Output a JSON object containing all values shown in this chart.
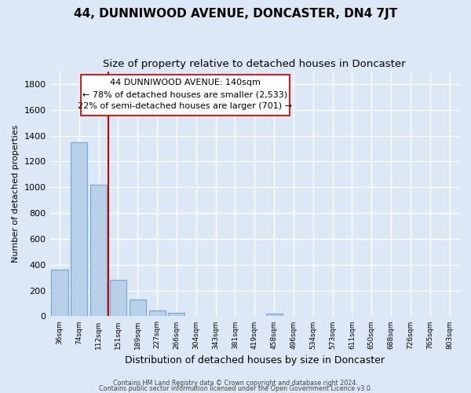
{
  "title": "44, DUNNIWOOD AVENUE, DONCASTER, DN4 7JT",
  "subtitle": "Size of property relative to detached houses in Doncaster",
  "xlabel": "Distribution of detached houses by size in Doncaster",
  "ylabel": "Number of detached properties",
  "bar_labels": [
    "36sqm",
    "74sqm",
    "112sqm",
    "151sqm",
    "189sqm",
    "227sqm",
    "266sqm",
    "304sqm",
    "343sqm",
    "381sqm",
    "419sqm",
    "458sqm",
    "496sqm",
    "534sqm",
    "573sqm",
    "611sqm",
    "650sqm",
    "688sqm",
    "726sqm",
    "765sqm",
    "803sqm"
  ],
  "bar_values": [
    360,
    1350,
    1020,
    285,
    130,
    45,
    30,
    0,
    0,
    0,
    0,
    20,
    0,
    0,
    0,
    0,
    0,
    0,
    0,
    0,
    0
  ],
  "bar_color": "#b8d0e8",
  "bar_edge_color": "#6fa8d0",
  "highlight_line_color": "#cc0000",
  "annotation_text_line1": "44 DUNNIWOOD AVENUE: 140sqm",
  "annotation_text_line2": "← 78% of detached houses are smaller (2,533)",
  "annotation_text_line3": "22% of semi-detached houses are larger (701) →",
  "ylim": [
    0,
    1900
  ],
  "yticks": [
    0,
    200,
    400,
    600,
    800,
    1000,
    1200,
    1400,
    1600,
    1800
  ],
  "footer_line1": "Contains HM Land Registry data © Crown copyright and database right 2024.",
  "footer_line2": "Contains public sector information licensed under the Open Government Licence v3.0.",
  "background_color": "#dce8f5",
  "grid_color": "#ffffff",
  "title_fontsize": 11,
  "subtitle_fontsize": 9.5
}
